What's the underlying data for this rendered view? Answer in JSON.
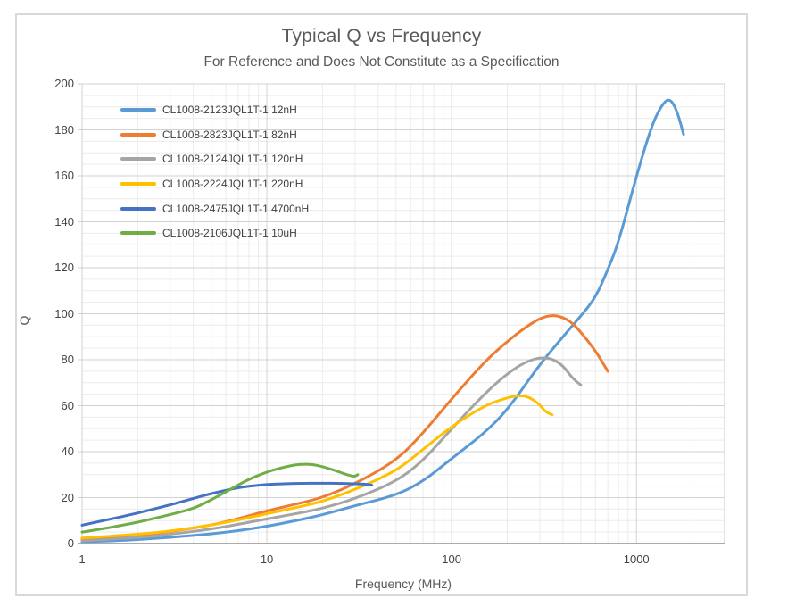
{
  "title": "Typical Q vs Frequency",
  "subtitle": "For Reference and Does Not Constitute as a Specification",
  "chart_data": {
    "type": "line",
    "title": "Typical Q vs Frequency",
    "subtitle": "For Reference and Does Not Constitute as a Specification",
    "xlabel": "Frequency (MHz)",
    "ylabel": "Q",
    "x_axis": {
      "scale": "log",
      "min": 1,
      "max": 3000,
      "tick_labels": [
        "1",
        "10",
        "100",
        "1000"
      ],
      "tick_values": [
        1,
        10,
        100,
        1000
      ]
    },
    "y_axis": {
      "min": 0,
      "max": 200,
      "major_step": 20,
      "minor_step": 5,
      "tick_labels": [
        "0",
        "20",
        "40",
        "60",
        "80",
        "100",
        "120",
        "140",
        "160",
        "180",
        "200"
      ],
      "tick_values": [
        0,
        20,
        40,
        60,
        80,
        100,
        120,
        140,
        160,
        180,
        200
      ]
    },
    "grid": {
      "on": true,
      "major_color": "#d2d2d2",
      "minor_color": "#ececec",
      "axis_line_color": "#ababab",
      "border_color": "#d9d9d9"
    },
    "legend_position": "top-left-inside",
    "series": [
      {
        "name": "CL1008-2123JQL1T-1 12nH",
        "color": "#5b9bd5",
        "points": [
          [
            1,
            0.8
          ],
          [
            1.5,
            1.2
          ],
          [
            2,
            1.7
          ],
          [
            3,
            2.7
          ],
          [
            5,
            4.2
          ],
          [
            7,
            5.6
          ],
          [
            10,
            7.5
          ],
          [
            15,
            10.3
          ],
          [
            20,
            12.5
          ],
          [
            30,
            16.5
          ],
          [
            50,
            21
          ],
          [
            70,
            27
          ],
          [
            100,
            37
          ],
          [
            150,
            48
          ],
          [
            200,
            58
          ],
          [
            300,
            78
          ],
          [
            400,
            90
          ],
          [
            500,
            99
          ],
          [
            600,
            107
          ],
          [
            700,
            119
          ],
          [
            800,
            131
          ],
          [
            1000,
            160
          ],
          [
            1200,
            181
          ],
          [
            1350,
            190
          ],
          [
            1500,
            194
          ],
          [
            1650,
            189
          ],
          [
            1800,
            178
          ]
        ]
      },
      {
        "name": "CL1008-2823JQL1T-1 82nH",
        "color": "#ed7d31",
        "points": [
          [
            1,
            2
          ],
          [
            1.5,
            2.8
          ],
          [
            2,
            3.6
          ],
          [
            3,
            5.2
          ],
          [
            5,
            8
          ],
          [
            7,
            10.8
          ],
          [
            10,
            14.3
          ],
          [
            15,
            17.5
          ],
          [
            20,
            20
          ],
          [
            30,
            26
          ],
          [
            50,
            36
          ],
          [
            70,
            48
          ],
          [
            100,
            63
          ],
          [
            150,
            79
          ],
          [
            200,
            88
          ],
          [
            250,
            94
          ],
          [
            300,
            98
          ],
          [
            350,
            99.5
          ],
          [
            400,
            98.5
          ],
          [
            450,
            96
          ],
          [
            500,
            92
          ],
          [
            600,
            84
          ],
          [
            700,
            75
          ]
        ]
      },
      {
        "name": "CL1008-2124JQL1T-1 120nH",
        "color": "#a5a5a5",
        "points": [
          [
            1,
            1.2
          ],
          [
            2,
            2.6
          ],
          [
            3,
            4
          ],
          [
            5,
            6.3
          ],
          [
            7,
            8.4
          ],
          [
            10,
            10.7
          ],
          [
            15,
            13.3
          ],
          [
            20,
            15.3
          ],
          [
            30,
            19.5
          ],
          [
            50,
            27
          ],
          [
            70,
            36
          ],
          [
            100,
            50
          ],
          [
            150,
            65
          ],
          [
            200,
            74
          ],
          [
            250,
            79
          ],
          [
            300,
            81
          ],
          [
            350,
            80.5
          ],
          [
            400,
            77.5
          ],
          [
            450,
            72
          ],
          [
            500,
            69
          ]
        ]
      },
      {
        "name": "CL1008-2224JQL1T-1 220nH",
        "color": "#ffc000",
        "points": [
          [
            1,
            2.4
          ],
          [
            2,
            4
          ],
          [
            3,
            5.4
          ],
          [
            5,
            8
          ],
          [
            7,
            10.3
          ],
          [
            10,
            13
          ],
          [
            15,
            16
          ],
          [
            20,
            18.3
          ],
          [
            30,
            23.5
          ],
          [
            50,
            31.5
          ],
          [
            70,
            41
          ],
          [
            100,
            51
          ],
          [
            150,
            60
          ],
          [
            200,
            63.5
          ],
          [
            230,
            64.5
          ],
          [
            260,
            64
          ],
          [
            300,
            60.5
          ],
          [
            320,
            57.5
          ],
          [
            350,
            56
          ]
        ]
      },
      {
        "name": "CL1008-2475JQL1T-1 4700nH",
        "color": "#4472c4",
        "points": [
          [
            1,
            8
          ],
          [
            1.3,
            10
          ],
          [
            1.7,
            12
          ],
          [
            2,
            13.3
          ],
          [
            3,
            16.8
          ],
          [
            4,
            19.6
          ],
          [
            5,
            21.8
          ],
          [
            6,
            23.2
          ],
          [
            7,
            24.3
          ],
          [
            8,
            25
          ],
          [
            10,
            25.7
          ],
          [
            12,
            26
          ],
          [
            15,
            26.2
          ],
          [
            20,
            26.3
          ],
          [
            25,
            26.2
          ],
          [
            30,
            26
          ],
          [
            35,
            25.8
          ],
          [
            37,
            25.4
          ]
        ]
      },
      {
        "name": "CL1008-2106JQL1T-1 10uH",
        "color": "#70ad47",
        "points": [
          [
            1,
            5
          ],
          [
            1.3,
            6.5
          ],
          [
            1.7,
            8.2
          ],
          [
            2,
            9.3
          ],
          [
            3,
            12.6
          ],
          [
            4,
            15.2
          ],
          [
            5,
            19
          ],
          [
            6,
            22.5
          ],
          [
            7,
            25.5
          ],
          [
            8,
            28
          ],
          [
            10,
            31.2
          ],
          [
            12,
            33
          ],
          [
            14,
            34.2
          ],
          [
            16,
            34.6
          ],
          [
            18,
            34.3
          ],
          [
            20,
            33.5
          ],
          [
            23,
            32
          ],
          [
            26,
            30.5
          ],
          [
            28,
            29.6
          ],
          [
            30,
            29.2
          ],
          [
            31,
            30
          ]
        ]
      }
    ]
  }
}
